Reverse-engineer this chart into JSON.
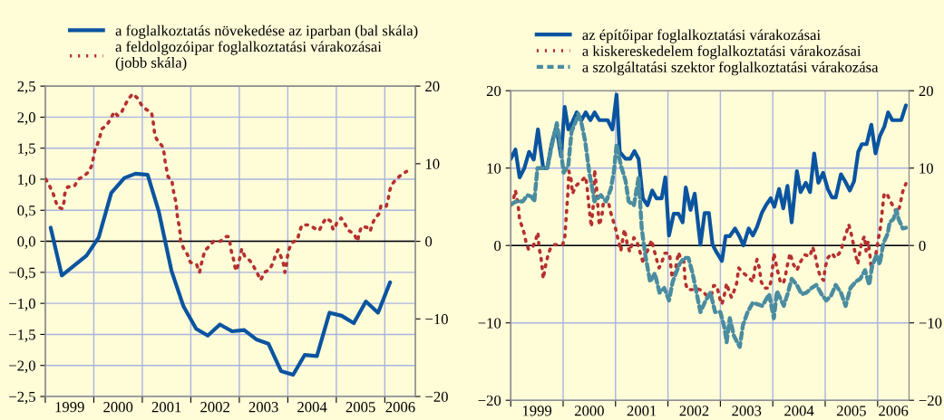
{
  "chart_data": [
    {
      "type": "line",
      "legend": "top",
      "grid": true,
      "marker": "none",
      "xlim": [
        1999,
        2006.63
      ],
      "xticks": [
        {
          "value": 1999,
          "label": null
        },
        {
          "value": 2000,
          "label": null
        },
        {
          "value": 2001,
          "label": null
        },
        {
          "value": 2002,
          "label": null
        },
        {
          "value": 2003,
          "label": null
        },
        {
          "value": 2004,
          "label": null
        },
        {
          "value": 2005,
          "label": null
        },
        {
          "value": 2006,
          "label": null
        },
        {
          "value": 1999.5,
          "label": "1999"
        },
        {
          "value": 2000.5,
          "label": "2000"
        },
        {
          "value": 2001.5,
          "label": "2001"
        },
        {
          "value": 2002.5,
          "label": "2002"
        },
        {
          "value": 2003.5,
          "label": "2003"
        },
        {
          "value": 2004.5,
          "label": "2004"
        },
        {
          "value": 2005.5,
          "label": "2005"
        },
        {
          "value": 2006.32,
          "label": "2006"
        }
      ],
      "ylim": [
        -2.5,
        2.5
      ],
      "yticks": [
        {
          "value": -2.5,
          "label": "−2,5"
        },
        {
          "value": -2.0,
          "label": "−2,0"
        },
        {
          "value": -1.5,
          "label": "−1,5"
        },
        {
          "value": -1.0,
          "label": "−1,0"
        },
        {
          "value": -0.5,
          "label": "−0,5"
        },
        {
          "value": 0,
          "label": "0,0"
        },
        {
          "value": 0.5,
          "label": "0,5"
        },
        {
          "value": 1.0,
          "label": "1,0"
        },
        {
          "value": 1.5,
          "label": "1,5"
        },
        {
          "value": 2.0,
          "label": "2,0"
        },
        {
          "value": 2.5,
          "label": "2,5"
        }
      ],
      "y2lim": [
        -20,
        20
      ],
      "y2ticks": [
        {
          "value": -20,
          "label": "−20"
        },
        {
          "value": -10,
          "label": "−10"
        },
        {
          "value": 0,
          "label": "0"
        },
        {
          "value": 10,
          "label": "10"
        },
        {
          "value": 20,
          "label": "20"
        }
      ],
      "ref_lines": [
        {
          "axis": "y",
          "value": 0,
          "color": "#000000"
        }
      ],
      "series": [
        {
          "name": "a foglalkoztatás növekedése az iparban (bal skála)",
          "color": "#0a54a0",
          "line_style": "solid",
          "x": [
            1999.11,
            1999.34,
            1999.85,
            2000.1,
            2000.36,
            2000.63,
            2000.86,
            2001.11,
            2001.34,
            2001.6,
            2001.85,
            2002.11,
            2002.35,
            2002.6,
            2002.85,
            2003.1,
            2003.35,
            2003.6,
            2003.86,
            2004.11,
            2004.35,
            2004.6,
            2004.86,
            2005.11,
            2005.36,
            2005.61,
            2005.86,
            2006.11
          ],
          "values": [
            0.22,
            -0.55,
            -0.23,
            0.06,
            0.78,
            1.02,
            1.09,
            1.07,
            0.48,
            -0.47,
            -1.05,
            -1.41,
            -1.52,
            -1.34,
            -1.45,
            -1.43,
            -1.58,
            -1.65,
            -2.09,
            -2.15,
            -1.83,
            -1.85,
            -1.15,
            -1.2,
            -1.32,
            -0.97,
            -1.15,
            -0.66
          ]
        },
        {
          "name": "a feldolgozóipar foglalkoztatási várakozásai\n(jobb skála)",
          "color": "#b5302f",
          "line_style": "dotted",
          "axis": "y2",
          "x": [
            1999.01,
            1999.09,
            1999.16,
            1999.21,
            1999.26,
            1999.35,
            1999.39,
            1999.4,
            1999.46,
            1999.6,
            1999.68,
            1999.8,
            1999.9,
            1999.96,
            1999.99,
            2000.02,
            2000.08,
            2000.13,
            2000.17,
            2000.27,
            2000.35,
            2000.42,
            2000.49,
            2000.57,
            2000.63,
            2000.71,
            2000.8,
            2000.91,
            2000.98,
            2001.08,
            2001.19,
            2001.22,
            2001.24,
            2001.26,
            2001.32,
            2001.42,
            2001.45,
            2001.47,
            2001.5,
            2001.53,
            2001.61,
            2001.63,
            2001.66,
            2001.7,
            2001.71,
            2001.73,
            2001.76,
            2001.78,
            2001.79,
            2001.85,
            2001.93,
            2001.99,
            2002.12,
            2002.18,
            2002.21,
            2002.25,
            2002.29,
            2002.37,
            2002.47,
            2002.61,
            2002.73,
            2002.78,
            2002.81,
            2002.84,
            2002.88,
            2002.91,
            2002.94,
            2002.99,
            2003.03,
            2003.05,
            2003.11,
            2003.22,
            2003.3,
            2003.37,
            2003.44,
            2003.52,
            2003.63,
            2003.7,
            2003.75,
            2003.8,
            2003.86,
            2003.91,
            2003.94,
            2003.97,
            2003.99,
            2004.02,
            2004.08,
            2004.2,
            2004.24,
            2004.29,
            2004.45,
            2004.57,
            2004.65,
            2004.71,
            2004.79,
            2004.88,
            2004.93,
            2004.96,
            2005.01,
            2005.1,
            2005.18,
            2005.25,
            2005.36,
            2005.44,
            2005.47,
            2005.52,
            2005.63,
            2005.7,
            2005.74,
            2005.8,
            2005.89,
            2005.92,
            2006.03,
            2006.07,
            2006.09,
            2006.14,
            2006.24,
            2006.34,
            2006.45
          ],
          "values": [
            8.0,
            7.1,
            6.2,
            5.2,
            4.4,
            4.2,
            5.2,
            6.1,
            7.0,
            7.1,
            8.0,
            8.4,
            9.0,
            9.8,
            10.7,
            11.7,
            12.6,
            13.6,
            14.5,
            15.0,
            15.8,
            16.7,
            16.2,
            16.6,
            17.4,
            18.3,
            19.0,
            18.4,
            17.6,
            17.0,
            16.6,
            15.6,
            14.6,
            13.6,
            12.9,
            12.2,
            11.3,
            10.3,
            9.3,
            8.3,
            7.9,
            6.9,
            5.9,
            4.9,
            3.9,
            2.9,
            2.0,
            1.0,
            0.0,
            -0.9,
            -1.7,
            -2.7,
            -3.0,
            -4.0,
            -3.1,
            -2.1,
            -1.2,
            -0.7,
            0.0,
            0.0,
            0.6,
            0.6,
            -0.3,
            -1.4,
            -2.3,
            -3.3,
            -3.8,
            -2.7,
            -1.6,
            -1.0,
            -1.9,
            -2.5,
            -3.3,
            -4.1,
            -5.0,
            -4.0,
            -3.6,
            -2.7,
            -1.7,
            -1.1,
            -2.0,
            -2.9,
            -4.0,
            -3.1,
            -2.1,
            -1.1,
            -0.2,
            0.2,
            1.2,
            2.1,
            2.1,
            1.6,
            1.4,
            2.2,
            3.0,
            2.6,
            1.6,
            1.5,
            2.4,
            3.0,
            2.2,
            1.4,
            1.0,
            0.0,
            1.0,
            1.9,
            1.8,
            1.3,
            2.2,
            3.0,
            3.6,
            4.6,
            4.5,
            5.4,
            6.3,
            7.3,
            8.0,
            8.6,
            9.0
          ]
        }
      ]
    },
    {
      "type": "line",
      "legend": "top",
      "grid": true,
      "marker": "none",
      "xlim": [
        1999,
        2006.6
      ],
      "xticks": [
        {
          "value": 1999,
          "label": null
        },
        {
          "value": 2000,
          "label": null
        },
        {
          "value": 2001,
          "label": null
        },
        {
          "value": 2002,
          "label": null
        },
        {
          "value": 2003,
          "label": null
        },
        {
          "value": 2004,
          "label": null
        },
        {
          "value": 2005,
          "label": null
        },
        {
          "value": 2006,
          "label": null
        },
        {
          "value": 1999.5,
          "label": "1999"
        },
        {
          "value": 2000.5,
          "label": "2000"
        },
        {
          "value": 2001.5,
          "label": "2001"
        },
        {
          "value": 2002.5,
          "label": "2002"
        },
        {
          "value": 2003.5,
          "label": "2003"
        },
        {
          "value": 2004.5,
          "label": "2004"
        },
        {
          "value": 2005.5,
          "label": "2005"
        },
        {
          "value": 2006.3,
          "label": "2006"
        }
      ],
      "ylim": [
        -20,
        20
      ],
      "yticks": [
        {
          "value": -20,
          "label": "−20"
        },
        {
          "value": -10,
          "label": "−10"
        },
        {
          "value": 0,
          "label": "0"
        },
        {
          "value": 10,
          "label": "10"
        },
        {
          "value": 20,
          "label": "20"
        }
      ],
      "y2lim": [
        -20,
        20
      ],
      "y2ticks": [
        {
          "value": -20,
          "label": "−20"
        },
        {
          "value": -10,
          "label": "−10"
        },
        {
          "value": 0,
          "label": "0"
        },
        {
          "value": 10,
          "label": "10"
        },
        {
          "value": 20,
          "label": "20"
        }
      ],
      "ref_lines": [
        {
          "axis": "y",
          "value": 0,
          "color": "#000000"
        }
      ],
      "series": [
        {
          "name": "az építőipar foglalkoztatási várakozásai",
          "color": "#0a54a0",
          "line_style": "solid",
          "x": [
            1999.0,
            1999.09,
            1999.17,
            1999.26,
            1999.35,
            1999.44,
            1999.52,
            1999.62,
            1999.7,
            1999.78,
            1999.87,
            1999.96,
            2000.03,
            2000.1,
            2000.18,
            2000.26,
            2000.35,
            2000.43,
            2000.52,
            2000.6,
            2000.69,
            2000.85,
            2000.94,
            2001.02,
            2001.08,
            2001.19,
            2001.28,
            2001.36,
            2001.44,
            2001.52,
            2001.61,
            2001.7,
            2001.78,
            2001.88,
            2001.95,
            2002.02,
            2002.11,
            2002.2,
            2002.28,
            2002.34,
            2002.43,
            2002.51,
            2002.62,
            2002.7,
            2002.78,
            2002.85,
            2002.93,
            2003.03,
            2003.1,
            2003.18,
            2003.28,
            2003.37,
            2003.44,
            2003.54,
            2003.62,
            2003.7,
            2003.79,
            2003.87,
            2003.96,
            2004.03,
            2004.12,
            2004.2,
            2004.28,
            2004.36,
            2004.46,
            2004.53,
            2004.63,
            2004.71,
            2004.79,
            2004.87,
            2004.96,
            2005.05,
            2005.13,
            2005.2,
            2005.3,
            2005.38,
            2005.47,
            2005.55,
            2005.63,
            2005.7,
            2005.79,
            2005.88,
            2005.96,
            2006.04,
            2006.13,
            2006.2,
            2006.28,
            2006.45,
            2006.54
          ],
          "values": [
            11.2,
            12.4,
            8.8,
            10.0,
            12.1,
            11.1,
            15.0,
            10.0,
            10.0,
            13.1,
            15.4,
            11.5,
            17.9,
            15.0,
            16.0,
            17.2,
            16.2,
            17.2,
            16.2,
            17.2,
            16.2,
            16.2,
            15.0,
            19.5,
            12.1,
            11.2,
            11.2,
            12.2,
            11.2,
            6.1,
            5.2,
            7.1,
            6.1,
            6.1,
            8.8,
            1.3,
            4.1,
            4.1,
            3.0,
            7.5,
            4.6,
            6.7,
            0.1,
            4.2,
            4.2,
            0.1,
            -0.9,
            -2.0,
            1.2,
            1.2,
            2.2,
            1.1,
            0.0,
            2.2,
            1.3,
            2.4,
            4.2,
            5.2,
            6.1,
            5.0,
            7.3,
            4.8,
            7.7,
            3.0,
            9.6,
            6.9,
            8.1,
            6.9,
            11.9,
            8.1,
            9.4,
            7.3,
            6.2,
            6.2,
            9.2,
            8.3,
            7.1,
            8.3,
            12.1,
            13.1,
            13.1,
            15.6,
            11.9,
            14.1,
            15.4,
            17.2,
            16.2,
            16.2,
            18.1
          ]
        },
        {
          "name": "a kiskereskedelem foglalkoztatási várakozásai",
          "color": "#b5302f",
          "line_style": "dotted",
          "x": [
            1999.01,
            1999.06,
            1999.09,
            1999.14,
            1999.17,
            1999.22,
            1999.26,
            1999.29,
            1999.34,
            1999.42,
            1999.48,
            1999.52,
            1999.54,
            1999.57,
            1999.59,
            1999.62,
            1999.67,
            1999.71,
            1999.75,
            1999.83,
            1999.99,
            2000.03,
            2000.05,
            2000.07,
            2000.09,
            2000.11,
            2000.15,
            2000.18,
            2000.24,
            2000.34,
            2000.43,
            2000.46,
            2000.49,
            2000.52,
            2000.54,
            2000.56,
            2000.59,
            2000.6,
            2000.64,
            2000.66,
            2000.69,
            2000.74,
            2000.77,
            2000.85,
            2000.91,
            2000.96,
            2001.0,
            2001.03,
            2001.07,
            2001.1,
            2001.17,
            2001.22,
            2001.27,
            2001.35,
            2001.41,
            2001.49,
            2001.53,
            2001.58,
            2001.63,
            2001.69,
            2001.72,
            2001.76,
            2001.8,
            2001.83,
            2001.89,
            2001.94,
            2002.03,
            2002.06,
            2002.09,
            2002.12,
            2002.15,
            2002.2,
            2002.24,
            2002.3,
            2002.33,
            2002.37,
            2002.47,
            2002.56,
            2002.65,
            2002.74,
            2002.83,
            2002.87,
            2002.93,
            2003.0,
            2003.03,
            2003.07,
            2003.12,
            2003.16,
            2003.21,
            2003.26,
            2003.31,
            2003.35,
            2003.41,
            2003.52,
            2003.62,
            2003.66,
            2003.7,
            2003.74,
            2003.78,
            2003.84,
            2003.93,
            2003.97,
            2004.0,
            2004.02,
            2004.05,
            2004.08,
            2004.12,
            2004.15,
            2004.21,
            2004.24,
            2004.27,
            2004.33,
            2004.39,
            2004.46,
            2004.52,
            2004.61,
            2004.71,
            2004.76,
            2004.8,
            2004.83,
            2004.86,
            2004.91,
            2004.97,
            2005.0,
            2005.05,
            2005.13,
            2005.19,
            2005.27,
            2005.32,
            2005.36,
            2005.41,
            2005.45,
            2005.49,
            2005.52,
            2005.55,
            2005.58,
            2005.62,
            2005.67,
            2005.7,
            2005.75,
            2005.78,
            2005.82,
            2005.86,
            2005.88,
            2005.93,
            2005.97,
            2006.01,
            2006.06,
            2006.09,
            2006.12,
            2006.17,
            2006.23,
            2006.3,
            2006.37,
            2006.42,
            2006.48,
            2006.54
          ],
          "values": [
            5.2,
            6.2,
            7.1,
            5.3,
            3.3,
            2.4,
            1.5,
            0.5,
            -0.5,
            -0.2,
            0.8,
            1.7,
            -0.3,
            -1.2,
            -2.2,
            -4.3,
            -2.4,
            -1.3,
            -0.5,
            0.1,
            0.1,
            0.9,
            2.8,
            4.8,
            6.7,
            9.6,
            8.6,
            6.7,
            7.7,
            8.3,
            8.9,
            7.3,
            5.3,
            3.4,
            2.4,
            4.2,
            6.1,
            9.8,
            7.3,
            5.3,
            2.6,
            3.8,
            5.7,
            6.1,
            4.2,
            3.1,
            2.2,
            1.3,
            0.2,
            -0.7,
            2.1,
            0.3,
            -0.8,
            1.0,
            0.5,
            -1.4,
            -2.3,
            -1.2,
            -0.3,
            0.7,
            -0.2,
            -1.2,
            -2.2,
            -2.9,
            -2.0,
            -1.0,
            -1.0,
            -3.0,
            -4.7,
            -3.9,
            -2.8,
            -0.9,
            -1.6,
            -1.8,
            -4.7,
            -5.7,
            -5.7,
            -5.6,
            -5.8,
            -6.5,
            -6.4,
            -5.2,
            -5.2,
            -7.1,
            -7.6,
            -6.6,
            -4.9,
            -5.8,
            -6.7,
            -5.9,
            -4.9,
            -2.9,
            -3.4,
            -4.0,
            -4.7,
            -2.9,
            -1.8,
            -2.8,
            -4.7,
            -5.5,
            -5.5,
            -4.5,
            -2.6,
            -1.0,
            -1.9,
            -3.0,
            -4.0,
            -4.9,
            -4.7,
            -4.0,
            -2.8,
            -1.0,
            -2.4,
            -3.2,
            -2.2,
            -1.2,
            -1.4,
            -0.2,
            -1.0,
            -2.0,
            -3.0,
            -4.1,
            -4.5,
            -2.8,
            -1.6,
            -1.0,
            -1.6,
            -1.0,
            -0.2,
            0.8,
            1.8,
            2.7,
            1.7,
            0.8,
            -0.3,
            -1.2,
            -2.4,
            -0.5,
            0.5,
            1.2,
            -0.7,
            0.5,
            -1.6,
            -3.2,
            -2.1,
            -1.0,
            0.7,
            2.6,
            4.6,
            6.5,
            6.8,
            5.9,
            5.0,
            4.2,
            5.0,
            7.0,
            8.0
          ]
        },
        {
          "name": "a szolgáltatási szektor foglalkoztatási várakozása",
          "color": "#4a8ca0",
          "line_style": "dashed",
          "x": [
            1999.0,
            1999.11,
            1999.23,
            1999.32,
            1999.4,
            1999.45,
            1999.51,
            1999.62,
            1999.7,
            1999.79,
            1999.88,
            1999.95,
            2000.01,
            2000.1,
            2000.16,
            2000.24,
            2000.29,
            2000.35,
            2000.42,
            2000.5,
            2000.6,
            2000.72,
            2000.82,
            2000.91,
            2000.97,
            2001.02,
            2001.1,
            2001.19,
            2001.25,
            2001.35,
            2001.44,
            2001.5,
            2001.56,
            2001.66,
            2001.75,
            2001.84,
            2001.93,
            2002.02,
            2002.09,
            2002.22,
            2002.31,
            2002.39,
            2002.47,
            2002.62,
            2002.72,
            2002.81,
            2002.9,
            2003.0,
            2003.08,
            2003.12,
            2003.18,
            2003.26,
            2003.37,
            2003.43,
            2003.52,
            2003.62,
            2003.71,
            2003.8,
            2003.93,
            2004.02,
            2004.08,
            2004.16,
            2004.21,
            2004.28,
            2004.36,
            2004.46,
            2004.55,
            2004.64,
            2004.74,
            2004.83,
            2004.93,
            2005.02,
            2005.11,
            2005.2,
            2005.3,
            2005.39,
            2005.48,
            2005.58,
            2005.67,
            2005.76,
            2005.84,
            2005.89,
            2005.98,
            2006.04,
            2006.11,
            2006.19,
            2006.23,
            2006.3,
            2006.36,
            2006.4,
            2006.48,
            2006.54
          ],
          "values": [
            5.3,
            5.7,
            5.7,
            6.5,
            6.3,
            5.7,
            10.0,
            10.0,
            10.1,
            13.1,
            15.8,
            12.7,
            9.4,
            10.4,
            14.7,
            16.0,
            17.0,
            15.8,
            13.5,
            9.4,
            5.7,
            6.5,
            5.7,
            7.3,
            9.6,
            13.1,
            10.4,
            8.4,
            5.7,
            5.2,
            8.8,
            2.2,
            -0.9,
            -4.7,
            -3.6,
            -6.1,
            -5.5,
            -7.1,
            -4.7,
            -2.4,
            -1.6,
            -1.6,
            -3.6,
            -8.6,
            -7.1,
            -6.1,
            -8.6,
            -8.6,
            -10.7,
            -12.5,
            -9.4,
            -11.7,
            -13.1,
            -10.3,
            -8.6,
            -7.4,
            -7.6,
            -7.8,
            -6.3,
            -9.4,
            -5.9,
            -7.1,
            -7.8,
            -6.3,
            -4.3,
            -5.1,
            -6.3,
            -6.1,
            -5.5,
            -5.1,
            -6.3,
            -7.1,
            -6.5,
            -5.1,
            -6.1,
            -7.8,
            -5.5,
            -4.7,
            -4.3,
            -3.2,
            -5.1,
            -2.8,
            -1.2,
            -2.4,
            0.3,
            1.5,
            3.0,
            3.4,
            4.6,
            3.4,
            2.2,
            2.3
          ]
        }
      ]
    }
  ]
}
